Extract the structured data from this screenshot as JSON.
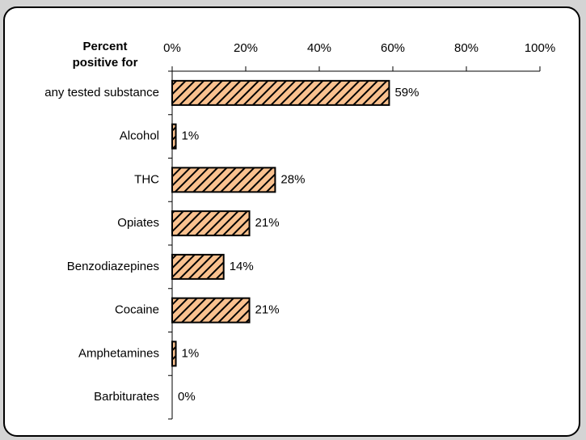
{
  "chart_data": {
    "type": "bar",
    "orientation": "horizontal",
    "y_axis_title": [
      "Percent",
      "positive for"
    ],
    "categories": [
      "any tested substance",
      "Alcohol",
      "THC",
      "Opiates",
      "Benzodiazepines",
      "Cocaine",
      "Amphetamines",
      "Barbiturates"
    ],
    "values": [
      59,
      1,
      28,
      21,
      14,
      21,
      1,
      0
    ],
    "value_labels": [
      "59%",
      "1%",
      "28%",
      "21%",
      "14%",
      "21%",
      "1%",
      "0%"
    ],
    "color": "#f9c18f",
    "hatch": true,
    "xlim": [
      0,
      100
    ],
    "xticks": [
      {
        "value": 0,
        "label": "0%"
      },
      {
        "value": 20,
        "label": "20%"
      },
      {
        "value": 40,
        "label": "40%"
      },
      {
        "value": 60,
        "label": "60%"
      },
      {
        "value": 80,
        "label": "80%"
      },
      {
        "value": 100,
        "label": "100%"
      }
    ],
    "grid": false
  }
}
